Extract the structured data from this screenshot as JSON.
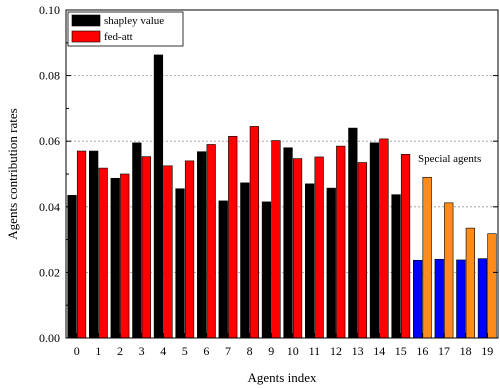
{
  "chart_data": {
    "type": "bar",
    "title": "",
    "xlabel": "Agents index",
    "ylabel": "Agents contribution rates",
    "ylim": [
      0,
      0.1
    ],
    "yticks": [
      "0.00",
      "0.02",
      "0.04",
      "0.06",
      "0.08",
      "0.10"
    ],
    "ytick_values": [
      0,
      0.02,
      0.04,
      0.06,
      0.08,
      0.1
    ],
    "categories": [
      "0",
      "1",
      "2",
      "3",
      "4",
      "5",
      "6",
      "7",
      "8",
      "9",
      "10",
      "11",
      "12",
      "13",
      "14",
      "15",
      "16",
      "17",
      "18",
      "19"
    ],
    "grid": true,
    "legend_position": "top-left",
    "series": [
      {
        "name": "shapley value",
        "color": "#000000",
        "special_color": "#0000ff",
        "values": [
          0.0435,
          0.057,
          0.0487,
          0.0595,
          0.0863,
          0.0455,
          0.0568,
          0.0418,
          0.0473,
          0.0415,
          0.058,
          0.047,
          0.0457,
          0.064,
          0.0595,
          0.0437,
          0.0237,
          0.024,
          0.0238,
          0.0242
        ]
      },
      {
        "name": "fed-att",
        "color": "#ff0000",
        "special_color": "#ff8c1a",
        "values": [
          0.057,
          0.0518,
          0.05,
          0.0553,
          0.0525,
          0.054,
          0.059,
          0.0615,
          0.0645,
          0.0602,
          0.0547,
          0.0552,
          0.0585,
          0.0535,
          0.0607,
          0.056,
          0.049,
          0.0412,
          0.0335,
          0.0318
        ]
      }
    ],
    "special_from_index": 16,
    "annotation": "Special agents"
  }
}
